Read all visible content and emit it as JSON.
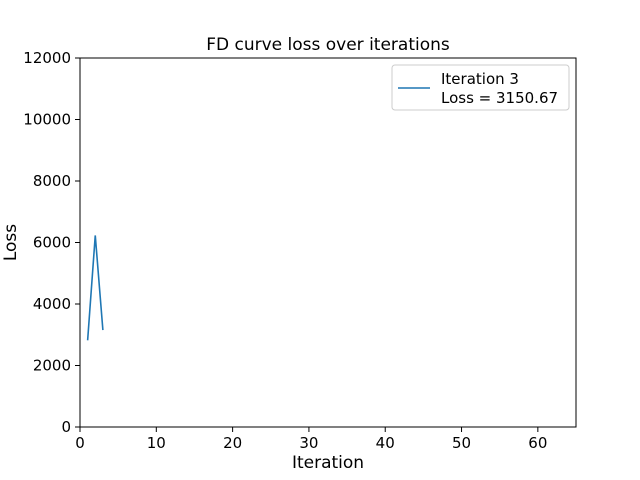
{
  "chart_data": {
    "type": "line",
    "title": "FD curve loss over iterations",
    "xlabel": "Iteration",
    "ylabel": "Loss",
    "xlim": [
      0,
      65
    ],
    "ylim": [
      0,
      12000
    ],
    "xticks": [
      "0",
      "10",
      "20",
      "30",
      "40",
      "50",
      "60"
    ],
    "yticks": [
      "0",
      "2000",
      "4000",
      "6000",
      "8000",
      "10000",
      "12000"
    ],
    "grid": false,
    "legend_position": "top-right",
    "series": [
      {
        "name": "Iteration 3",
        "color": "#1f77b4",
        "x": [
          1,
          2,
          3
        ],
        "y": [
          2820,
          6230,
          3150.67
        ]
      }
    ],
    "legend_lines": [
      "Iteration 3",
      "Loss = 3150.67"
    ]
  }
}
